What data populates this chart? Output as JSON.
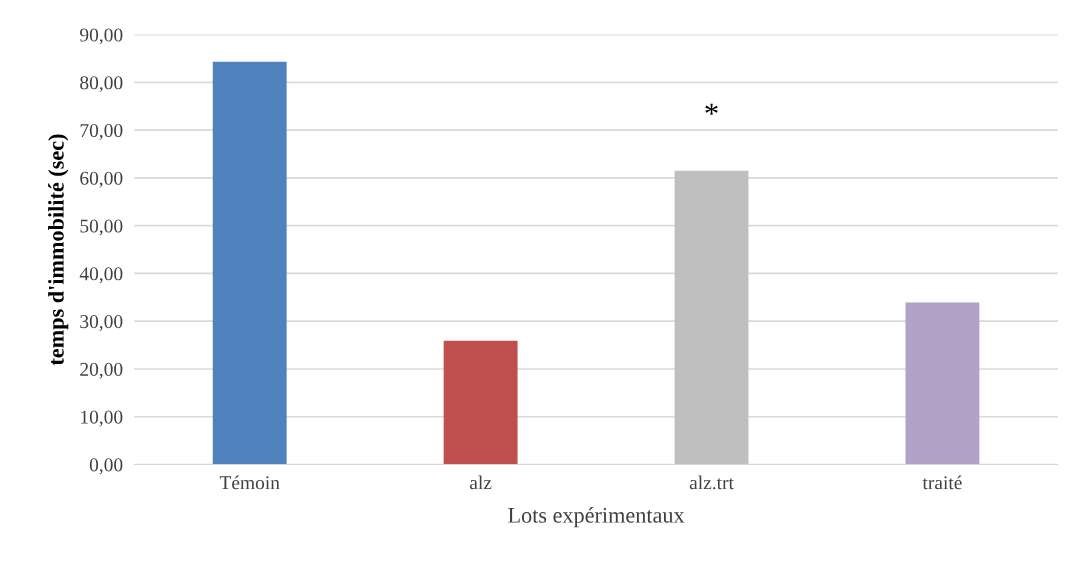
{
  "chart_data": {
    "type": "bar",
    "xlabel": "Lots expérimentaux",
    "ylabel": "temps d'immobilité (sec)",
    "categories": [
      "Témoin",
      "alz",
      "alz.trt",
      "traité"
    ],
    "values": [
      84.3,
      25.9,
      61.5,
      33.9
    ],
    "colors": [
      "#4f81bd",
      "#c0504d",
      "#bfbfbf",
      "#b2a2c7"
    ],
    "ylim": [
      0,
      90
    ],
    "yticks": [
      {
        "value": 0,
        "label": "0,00"
      },
      {
        "value": 10,
        "label": "10,00"
      },
      {
        "value": 20,
        "label": "20,00"
      },
      {
        "value": 30,
        "label": "30,00"
      },
      {
        "value": 40,
        "label": "40,00"
      },
      {
        "value": 50,
        "label": "50,00"
      },
      {
        "value": 60,
        "label": "60,00"
      },
      {
        "value": 70,
        "label": "70,00"
      },
      {
        "value": 80,
        "label": "80,00"
      },
      {
        "value": 90,
        "label": "90,00"
      }
    ],
    "grid": "y",
    "annotations": [
      "*"
    ]
  }
}
